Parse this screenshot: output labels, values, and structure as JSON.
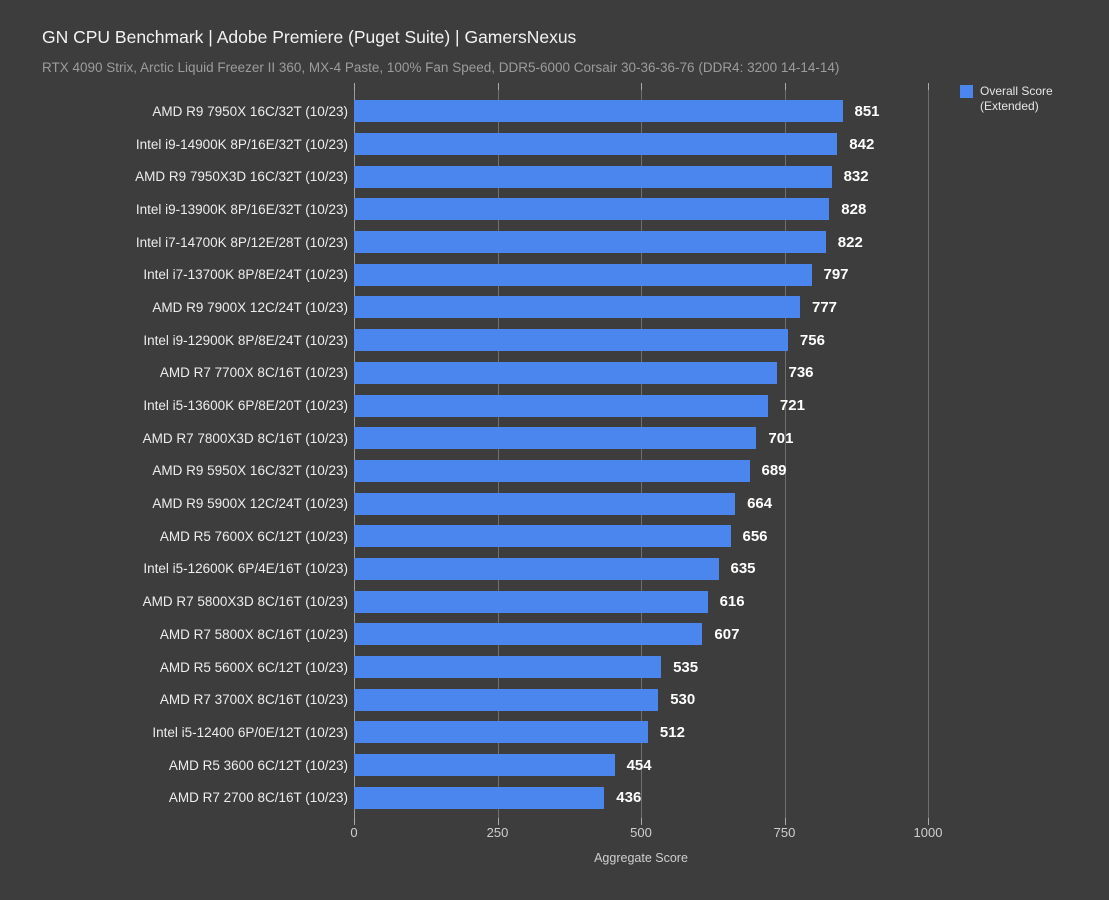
{
  "header": {
    "title": "GN CPU Benchmark | Adobe Premiere (Puget Suite) | GamersNexus",
    "subtitle": "RTX 4090 Strix, Arctic Liquid Freezer II 360, MX-4 Paste, 100% Fan Speed, DDR5-6000 Corsair 30-36-36-76 (DDR4: 3200 14-14-14)"
  },
  "legend": {
    "line1": "Overall Score",
    "line2": "(Extended)",
    "swatch_color": "#4a86ee"
  },
  "colors": {
    "background": "#3d3d3d",
    "bar": "#4a86ee",
    "gridline": "#6f6f6f",
    "axis_tick": "#a9a9a9",
    "title_text": "#f2f2f2",
    "subtitle_text": "#9c9c9c",
    "value_text": "#ffffff"
  },
  "chart_data": {
    "type": "bar",
    "orientation": "horizontal",
    "title": "GN CPU Benchmark | Adobe Premiere (Puget Suite) | GamersNexus",
    "subtitle": "RTX 4090 Strix, Arctic Liquid Freezer II 360, MX-4 Paste, 100% Fan Speed, DDR5-6000 Corsair 30-36-36-76 (DDR4: 3200 14-14-14)",
    "xlabel": "Aggregate Score",
    "ylabel": "",
    "xlim": [
      0,
      1000
    ],
    "xticks": [
      0,
      250,
      500,
      750,
      1000
    ],
    "grid": true,
    "legend_position": "top-right",
    "legend_entries": [
      "Overall Score (Extended)"
    ],
    "categories": [
      "AMD R9 7950X 16C/32T (10/23)",
      "Intel i9-14900K 8P/16E/32T (10/23)",
      "AMD R9 7950X3D 16C/32T (10/23)",
      "Intel i9-13900K 8P/16E/32T (10/23)",
      "Intel i7-14700K 8P/12E/28T (10/23)",
      "Intel i7-13700K 8P/8E/24T (10/23)",
      "AMD R9 7900X 12C/24T (10/23)",
      "Intel i9-12900K 8P/8E/24T (10/23)",
      "AMD R7 7700X 8C/16T (10/23)",
      "Intel i5-13600K 6P/8E/20T (10/23)",
      "AMD R7 7800X3D 8C/16T (10/23)",
      "AMD R9 5950X 16C/32T (10/23)",
      "AMD R9 5900X 12C/24T (10/23)",
      "AMD R5 7600X 6C/12T (10/23)",
      "Intel i5-12600K 6P/4E/16T (10/23)",
      "AMD R7 5800X3D 8C/16T (10/23)",
      "AMD R7 5800X 8C/16T (10/23)",
      "AMD R5 5600X 6C/12T (10/23)",
      "AMD R7 3700X 8C/16T (10/23)",
      "Intel i5-12400 6P/0E/12T (10/23)",
      "AMD R5 3600 6C/12T (10/23)",
      "AMD R7 2700 8C/16T (10/23)"
    ],
    "values": [
      851,
      842,
      832,
      828,
      822,
      797,
      777,
      756,
      736,
      721,
      701,
      689,
      664,
      656,
      635,
      616,
      607,
      535,
      530,
      512,
      454,
      436
    ]
  }
}
